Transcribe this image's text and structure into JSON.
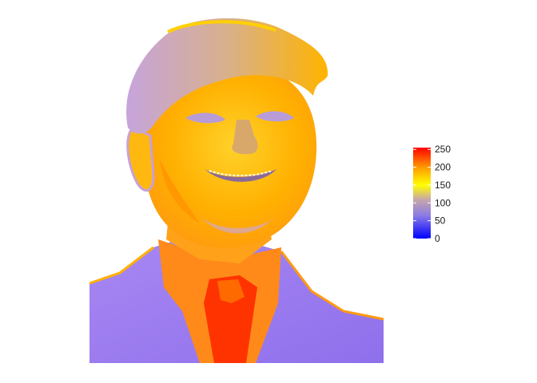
{
  "chart_data": {
    "type": "heatmap",
    "title": "",
    "xlabel": "",
    "ylabel": "",
    "grid": false,
    "axes_visible": false,
    "subject": "false-colour intensity image of a smiling man's portrait on white background",
    "colorbar": {
      "placement": "right",
      "range": [
        0,
        255
      ],
      "ticks": [
        0,
        50,
        100,
        150,
        200,
        250
      ],
      "tick_labels": [
        "0",
        "50",
        "100",
        "150",
        "200",
        "250"
      ],
      "colors": [
        {
          "value": 0,
          "color": "#0000ff"
        },
        {
          "value": 64,
          "color": "#8a7ae6"
        },
        {
          "value": 110,
          "color": "#c8a8a8"
        },
        {
          "value": 150,
          "color": "#ffff00"
        },
        {
          "value": 200,
          "color": "#ff9900"
        },
        {
          "value": 255,
          "color": "#ff0000"
        }
      ]
    },
    "regions": [
      {
        "name": "background",
        "value": null,
        "color": "#ffffff"
      },
      {
        "name": "hair",
        "value": 120,
        "color": "#c9a8d8"
      },
      {
        "name": "face",
        "value": 175,
        "color": "#ffc800"
      },
      {
        "name": "suit",
        "value": 70,
        "color": "#9a78f0"
      },
      {
        "name": "shirt",
        "value": 205,
        "color": "#ff8a1a"
      },
      {
        "name": "tie",
        "value": 235,
        "color": "#ff3300"
      }
    ]
  }
}
